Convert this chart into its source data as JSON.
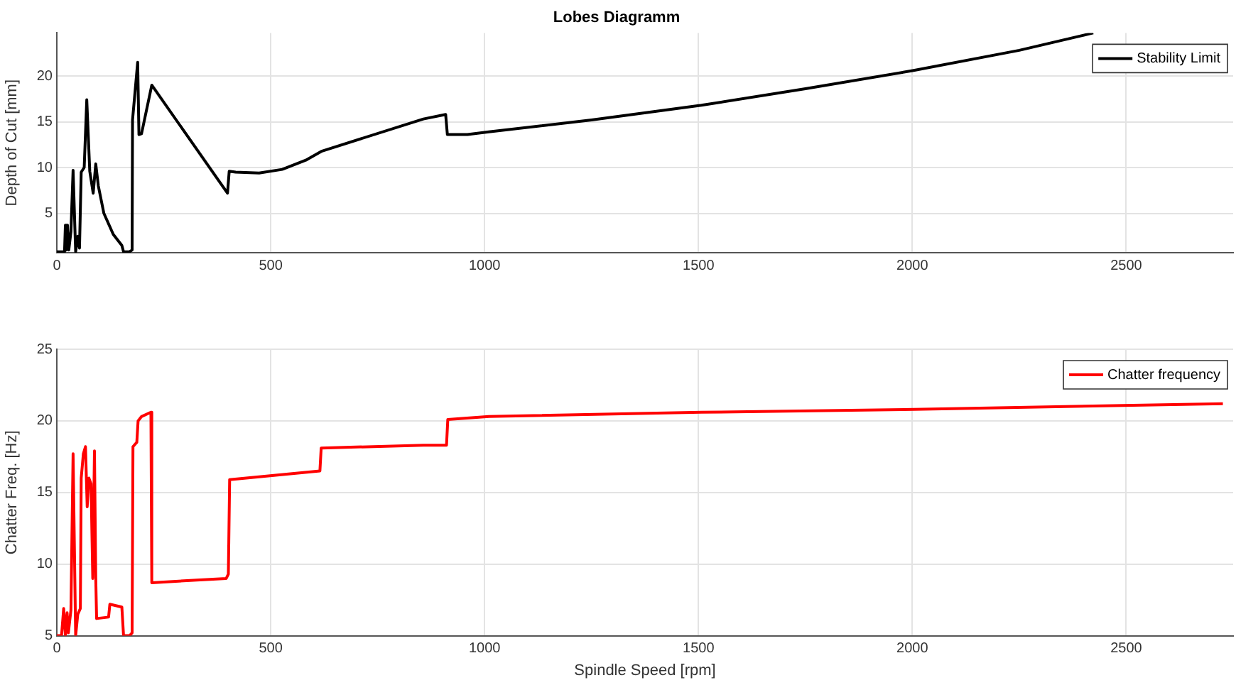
{
  "chart_data": [
    {
      "type": "line",
      "title": "Lobes Diagramm",
      "ylabel": "Depth of Cut [mm]",
      "xlim": [
        0,
        2750
      ],
      "xticks": [
        0,
        500,
        1000,
        1500,
        2000,
        2500
      ],
      "ylim": [
        0.7,
        24.7
      ],
      "yticks": [
        5,
        10,
        15,
        20
      ],
      "grid": true,
      "legend": "top right",
      "marker": "none",
      "line_style": "solid",
      "series": [
        {
          "name": "Stability Limit",
          "color": "#000000",
          "x": [
            0,
            18,
            20,
            22,
            25,
            28,
            33,
            38,
            44,
            49,
            53,
            57,
            64,
            70,
            77,
            85,
            91,
            97,
            110,
            132,
            152,
            156,
            170,
            176,
            177,
            189,
            192,
            198,
            222,
            399,
            403,
            418,
            473,
            527,
            582,
            620,
            857,
            909,
            913,
            960,
            1010,
            1250,
            1507,
            1750,
            2003,
            2250,
            2423
          ],
          "values": [
            0.8,
            0.8,
            3.7,
            1,
            3.7,
            1,
            3,
            9.7,
            0.8,
            2.5,
            1.2,
            9.5,
            10,
            17.4,
            9.6,
            7.2,
            10.4,
            8,
            5,
            2.7,
            1.5,
            0.8,
            0.8,
            1,
            15.2,
            21.5,
            13.6,
            13.7,
            19,
            7.2,
            9.6,
            9.5,
            9.4,
            9.8,
            10.8,
            11.8,
            15.3,
            15.8,
            13.6,
            13.6,
            13.9,
            15.2,
            16.8,
            18.6,
            20.6,
            22.8,
            24.7
          ]
        }
      ]
    },
    {
      "type": "line",
      "xlabel": "Spindle Speed [rpm]",
      "ylabel": "Chatter Freq. [Hz]",
      "xlim": [
        0,
        2750
      ],
      "xticks": [
        0,
        500,
        1000,
        1500,
        2000,
        2500
      ],
      "ylim": [
        5,
        25
      ],
      "yticks": [
        5,
        10,
        15,
        20,
        25
      ],
      "grid": true,
      "legend": "top right",
      "marker": "none",
      "line_style": "solid",
      "series": [
        {
          "name": "Chatter frequency",
          "color": "#ff0000",
          "x": [
            0,
            11,
            16,
            20,
            24,
            27,
            33,
            38,
            44,
            49,
            55,
            57,
            62,
            67,
            71,
            75,
            80,
            84,
            88,
            91,
            93,
            121,
            124,
            152,
            156,
            170,
            176,
            178,
            187,
            190,
            198,
            220,
            222,
            396,
            401,
            404,
            615,
            618,
            857,
            911,
            914,
            1010,
            1507,
            2003,
            2726
          ],
          "values": [
            5,
            5,
            6.9,
            5,
            6.6,
            5.2,
            6.8,
            17.7,
            5,
            6.5,
            6.9,
            16,
            17.7,
            18.2,
            14,
            16,
            15.6,
            9,
            17.9,
            9,
            6.2,
            6.3,
            7.2,
            7,
            5,
            5,
            5.2,
            18.2,
            18.5,
            20,
            20.3,
            20.6,
            8.7,
            9,
            9.3,
            15.9,
            16.5,
            18.1,
            18.3,
            18.3,
            20.1,
            20.3,
            20.6,
            20.8,
            21.2
          ]
        }
      ]
    }
  ]
}
